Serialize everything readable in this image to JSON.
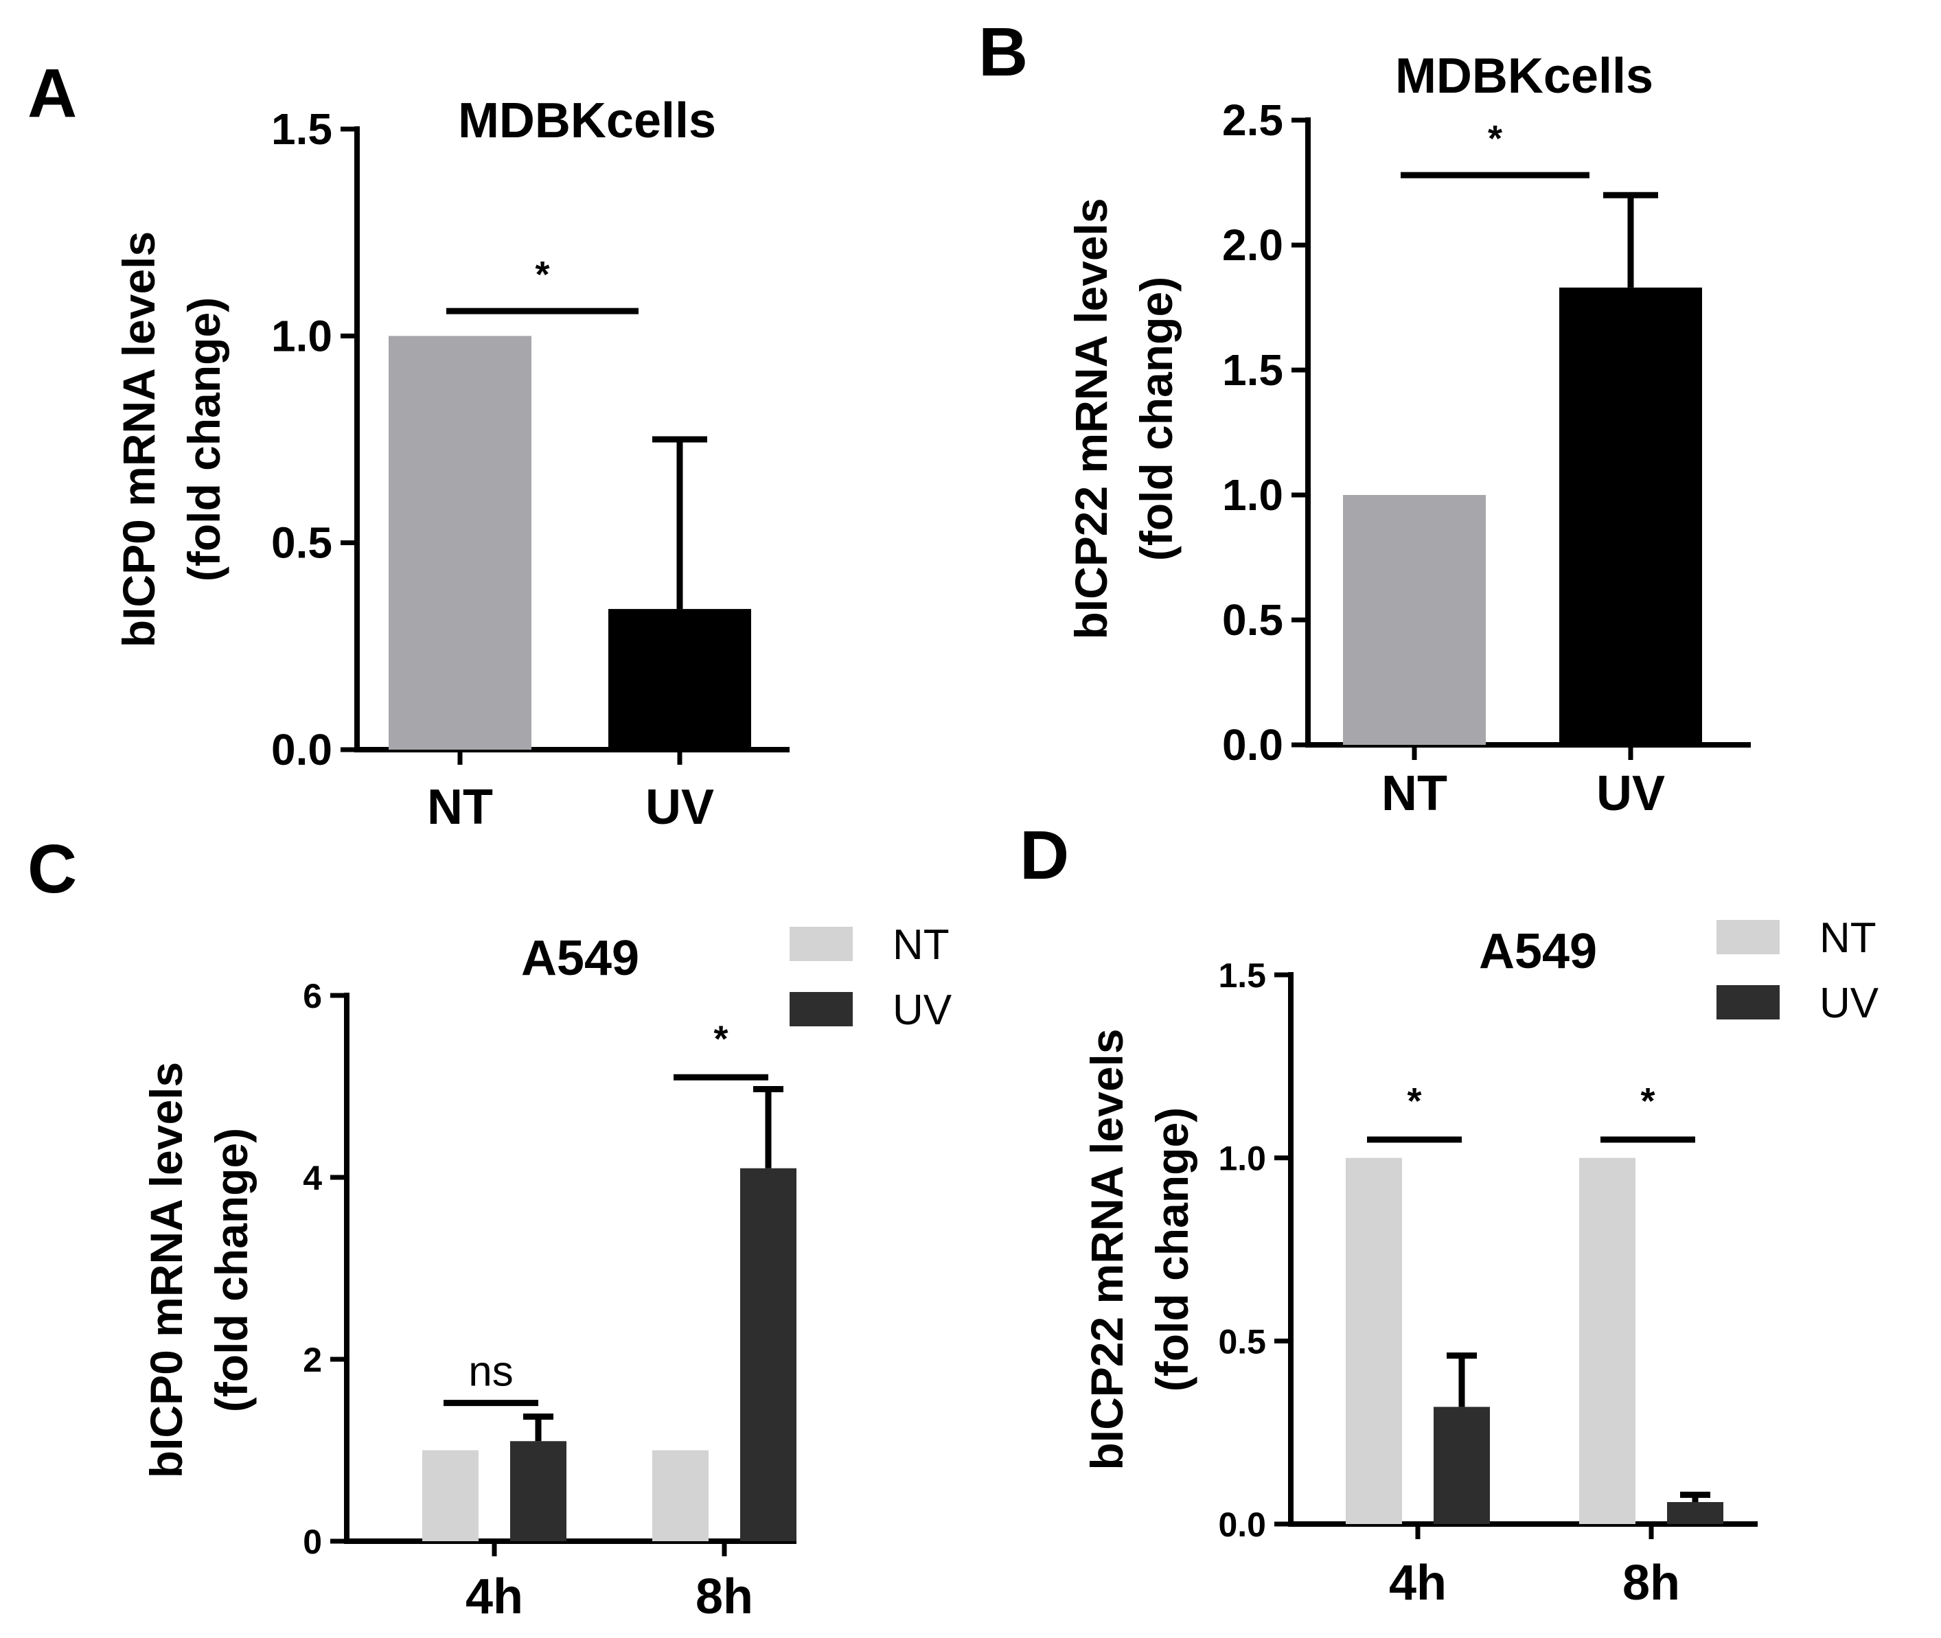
{
  "figure_labels": [
    "A",
    "B",
    "C",
    "D"
  ],
  "chart_data": [
    {
      "panel": "A",
      "type": "bar",
      "title": "MDBKcells",
      "ylabel_line1": "bICP0 mRNA levels",
      "ylabel_line2": "(fold change)",
      "xlabel": "",
      "ylim": [
        0,
        1.5
      ],
      "yticks": [
        "0.0",
        "0.5",
        "1.0",
        "1.5"
      ],
      "categories": [
        "NT",
        "UV"
      ],
      "values": [
        1.0,
        0.34
      ],
      "errors": [
        0,
        0.41
      ],
      "colors": [
        "#a7a7ab",
        "#000000"
      ],
      "significance": [
        {
          "label": "*",
          "pair": [
            "NT",
            "UV"
          ],
          "y": 1.06
        }
      ]
    },
    {
      "panel": "B",
      "type": "bar",
      "title": "MDBKcells",
      "ylabel_line1": "bICP22 mRNA levels",
      "ylabel_line2": "(fold change)",
      "xlabel": "",
      "ylim": [
        0,
        2.5
      ],
      "yticks": [
        "0.0",
        "0.5",
        "1.0",
        "1.5",
        "2.0",
        "2.5"
      ],
      "categories": [
        "NT",
        "UV"
      ],
      "values": [
        1.0,
        1.83
      ],
      "errors": [
        0,
        0.37
      ],
      "colors": [
        "#a7a7ab",
        "#000000"
      ],
      "significance": [
        {
          "label": "*",
          "pair": [
            "NT",
            "UV"
          ],
          "y": 2.28
        }
      ]
    },
    {
      "panel": "C",
      "type": "bar",
      "title": "A549",
      "ylabel_line1": "bICP0 mRNA levels",
      "ylabel_line2": "(fold change)",
      "xlabel": "",
      "ylim": [
        0,
        6
      ],
      "yticks": [
        "0",
        "2",
        "4",
        "6"
      ],
      "categories": [
        "4h",
        "8h"
      ],
      "series": [
        {
          "name": "NT",
          "values": [
            1.0,
            1.0
          ],
          "errors": [
            0,
            0
          ],
          "color": "#d3d3d3"
        },
        {
          "name": "UV",
          "values": [
            1.1,
            4.1
          ],
          "errors": [
            0.27,
            0.87
          ],
          "color": "#2e2e2e"
        }
      ],
      "significance": [
        {
          "label": "ns",
          "category": "4h",
          "y": 1.52
        },
        {
          "label": "*",
          "category": "8h",
          "y": 5.1
        }
      ]
    },
    {
      "panel": "D",
      "type": "bar",
      "title": "A549",
      "ylabel_line1": "bICP22 mRNA levels",
      "ylabel_line2": "(fold change)",
      "xlabel": "",
      "ylim": [
        0,
        1.5
      ],
      "yticks": [
        "0.0",
        "0.5",
        "1.0",
        "1.5"
      ],
      "categories": [
        "4h",
        "8h"
      ],
      "series": [
        {
          "name": "NT",
          "values": [
            1.0,
            1.0
          ],
          "errors": [
            0,
            0
          ],
          "color": "#d3d3d3"
        },
        {
          "name": "UV",
          "values": [
            0.32,
            0.06
          ],
          "errors": [
            0.14,
            0.02
          ],
          "color": "#2e2e2e"
        }
      ],
      "significance": [
        {
          "label": "*",
          "category": "4h",
          "y": 1.05
        },
        {
          "label": "*",
          "category": "8h",
          "y": 1.05
        }
      ]
    }
  ]
}
